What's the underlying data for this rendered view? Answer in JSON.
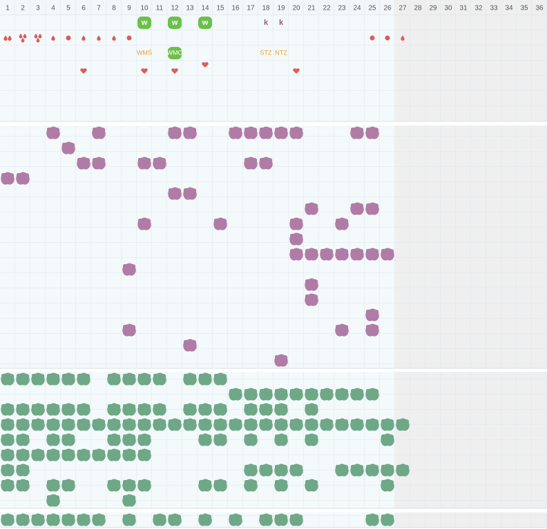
{
  "header": {
    "columns": [
      "1",
      "2",
      "3",
      "4",
      "5",
      "6",
      "7",
      "8",
      "9",
      "10",
      "11",
      "12",
      "13",
      "14",
      "15",
      "16",
      "17",
      "18",
      "19",
      "20",
      "21",
      "22",
      "23",
      "24",
      "25",
      "26",
      "27",
      "28",
      "29",
      "30",
      "31",
      "32",
      "33",
      "34",
      "35",
      "36"
    ]
  },
  "top": {
    "w_markers": [
      "w",
      "w",
      "w"
    ],
    "k_markers": [
      "k",
      "k"
    ],
    "labels": [
      "WMŚ",
      "WMO",
      "ŚTZ",
      "NTZ"
    ]
  }
}
